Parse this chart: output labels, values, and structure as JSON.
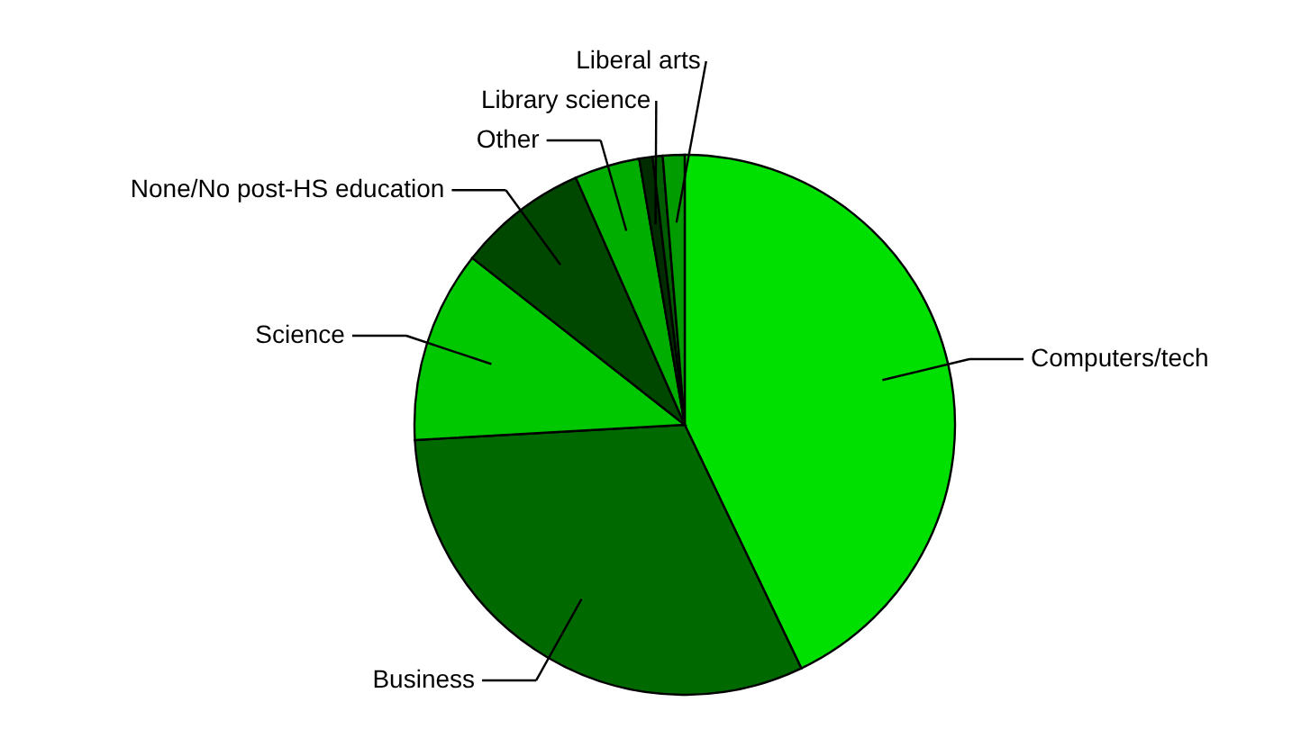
{
  "chart_data": {
    "type": "pie",
    "categories": [
      "Computers/tech",
      "Business",
      "Science",
      "None/No post-HS education",
      "Other",
      "Library science",
      null,
      "Liberal arts"
    ],
    "values": [
      42.9,
      31.2,
      11.5,
      7.8,
      3.9,
      0.8,
      0.6,
      1.3
    ],
    "colors": [
      "#00e000",
      "#006a00",
      "#00c800",
      "#004800",
      "#00ae00",
      "#002c00",
      "#005c00",
      "#009c00"
    ]
  }
}
